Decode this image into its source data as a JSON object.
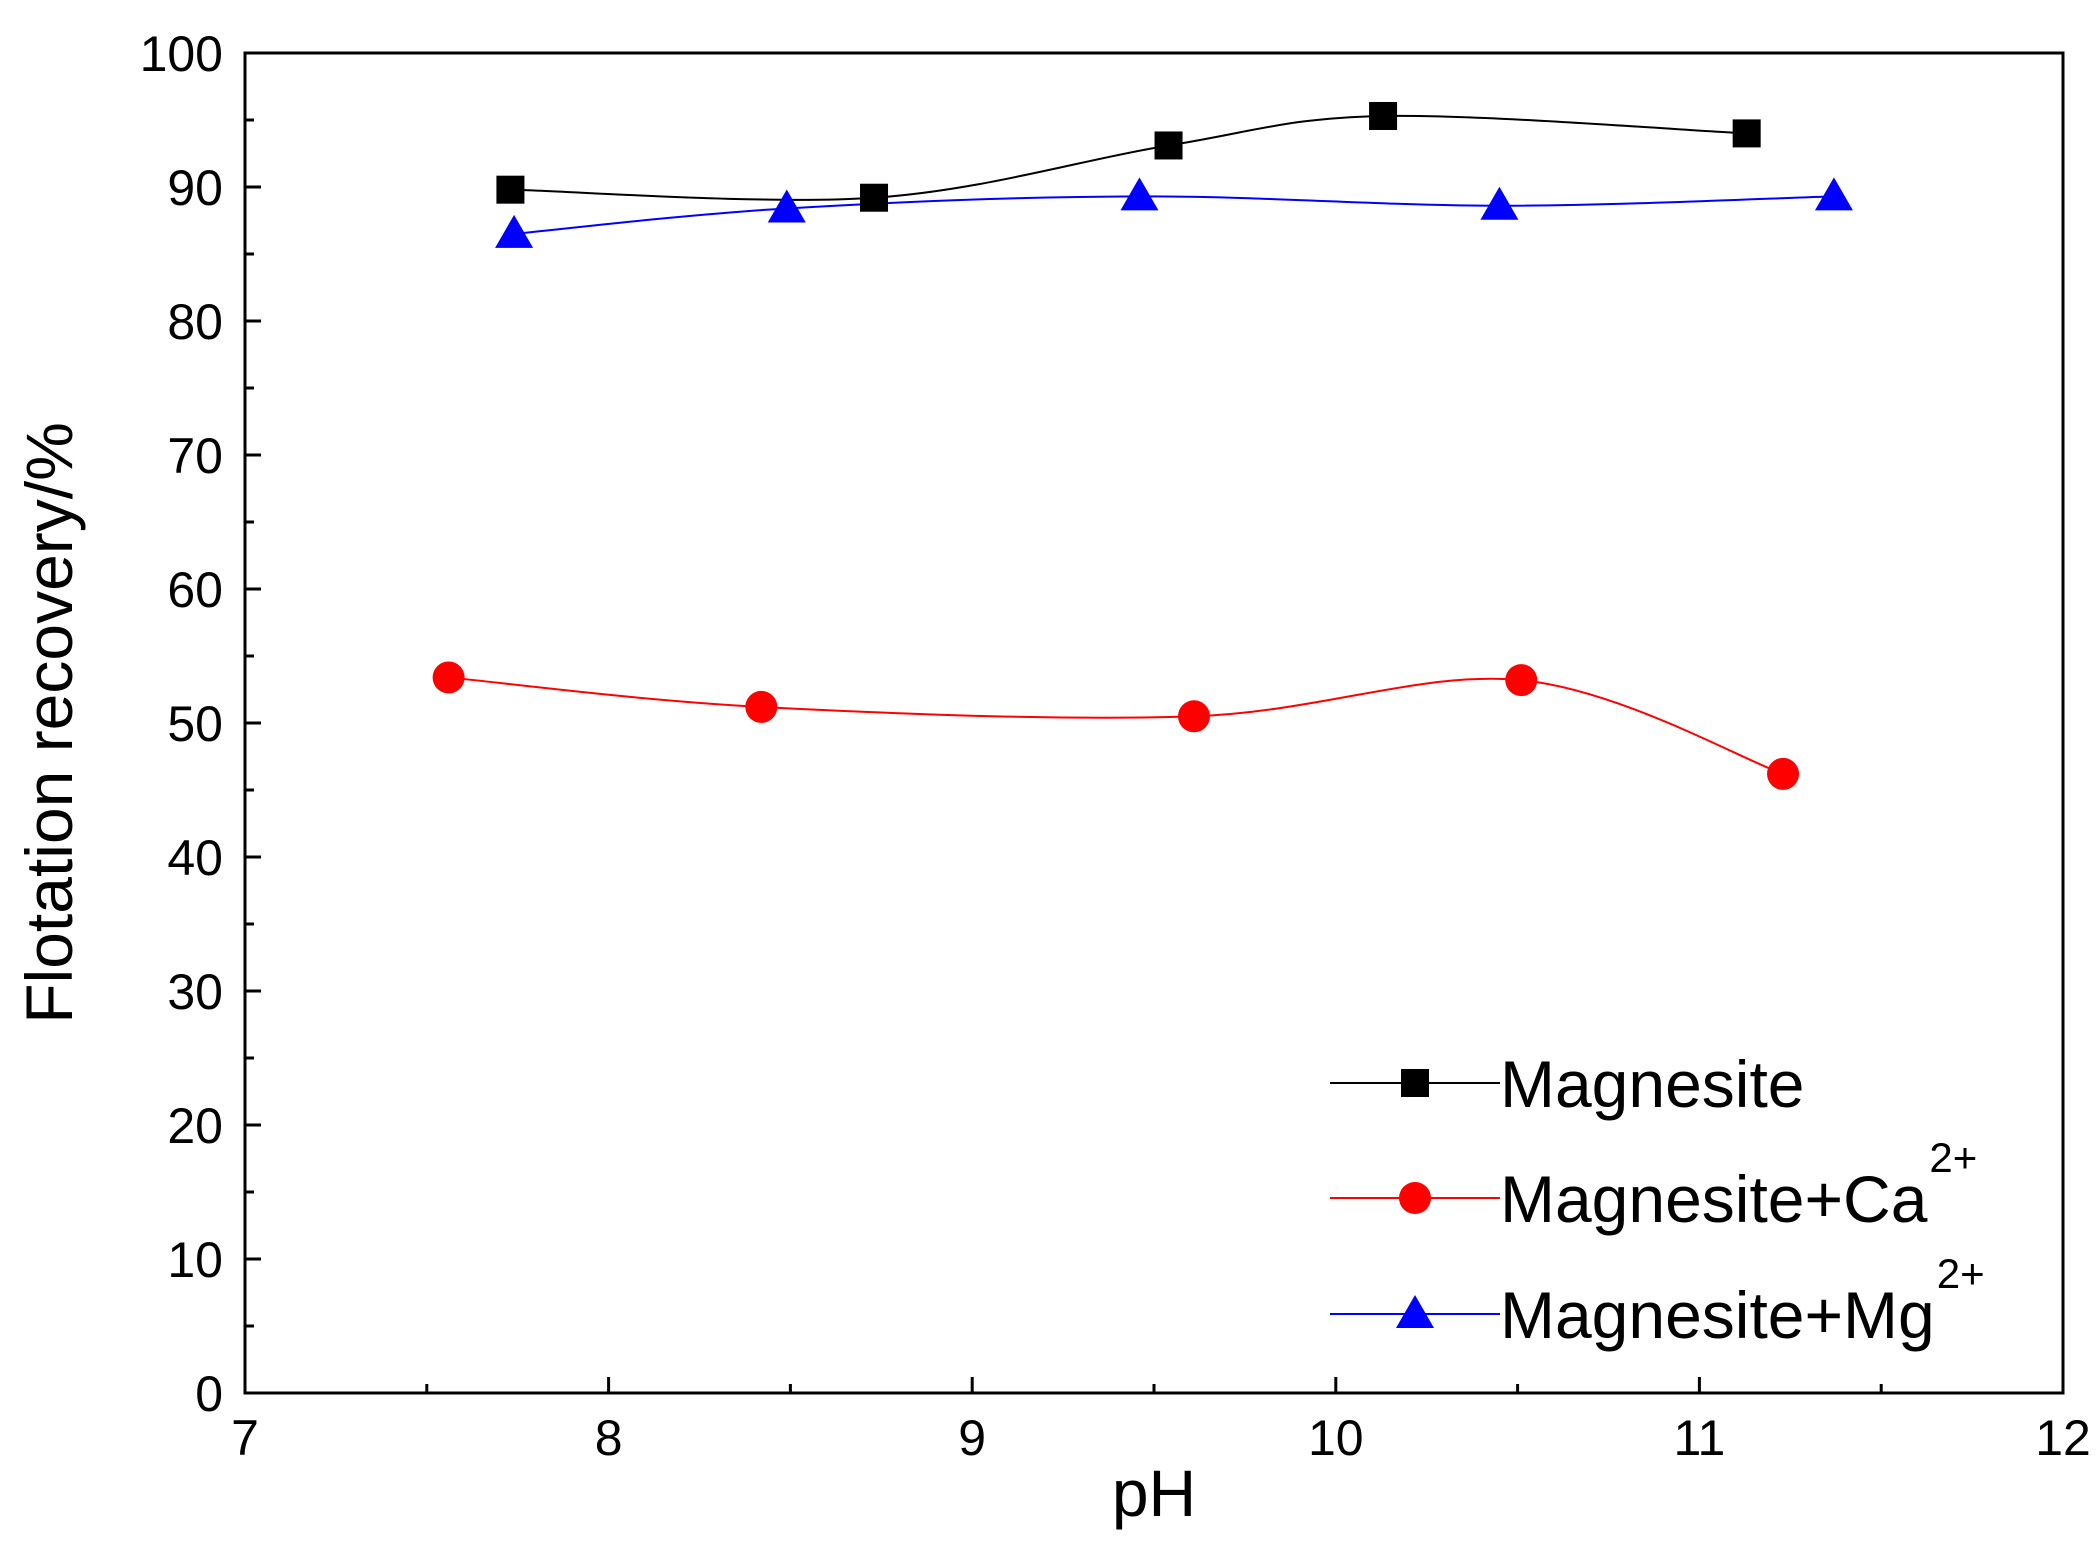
{
  "chart_data": {
    "type": "line",
    "title": "",
    "xlabel": "pH",
    "ylabel": "Flotation recovery/%",
    "xlim": [
      7,
      12
    ],
    "ylim": [
      0,
      100
    ],
    "x_ticks": [
      7,
      8,
      9,
      10,
      11,
      12
    ],
    "y_ticks": [
      0,
      10,
      20,
      30,
      40,
      50,
      60,
      70,
      80,
      90,
      100
    ],
    "x_tick_labels": [
      "7",
      "8",
      "9",
      "10",
      "11",
      "12"
    ],
    "y_tick_labels": [
      "0",
      "10",
      "20",
      "30",
      "40",
      "50",
      "60",
      "70",
      "80",
      "90",
      "100"
    ],
    "grid": false,
    "legend_position": "bottom-right",
    "series": [
      {
        "name": "Magnesite",
        "label_main": "Magnesite",
        "label_sup": "",
        "marker": "square",
        "color": "#000000",
        "marker_color": "#000000",
        "x": [
          7.73,
          8.73,
          9.54,
          10.13,
          11.13
        ],
        "y": [
          89.8,
          89.2,
          93.1,
          95.3,
          94.0
        ]
      },
      {
        "name": "Magnesite+Ca2+",
        "label_main": "Magnesite+Ca",
        "label_sup": "2+",
        "marker": "circle",
        "color": "#ff0000",
        "marker_color": "#ff0000",
        "x": [
          7.56,
          8.42,
          9.61,
          10.51,
          11.23
        ],
        "y": [
          53.4,
          51.2,
          50.5,
          53.2,
          46.2
        ]
      },
      {
        "name": "Magnesite+Mg2+",
        "label_main": "Magnesite+Mg",
        "label_sup": "2+",
        "marker": "triangle",
        "color": "#0000ff",
        "marker_color": "#0000ff",
        "x": [
          7.74,
          8.49,
          9.46,
          10.45,
          11.37
        ],
        "y": [
          86.5,
          88.4,
          89.3,
          88.6,
          89.3
        ]
      }
    ]
  }
}
